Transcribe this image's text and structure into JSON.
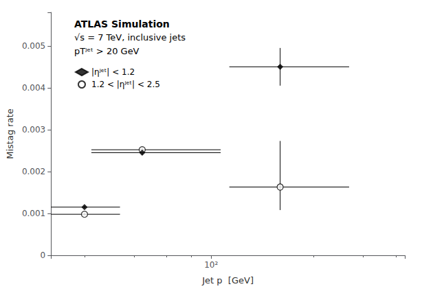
{
  "chart_data": {
    "type": "scatter",
    "xlabel": "Jet p  [GeV]",
    "ylabel": "Mistag rate",
    "log": "x",
    "xlim": [
      20,
      700
    ],
    "ylim": [
      0,
      0.0058
    ],
    "xticks": [
      {
        "value": 100,
        "label": "10²"
      }
    ],
    "yticks": [
      0,
      0.001,
      0.002,
      0.003,
      0.004,
      0.005
    ],
    "grid": false,
    "legend": "upper left",
    "annotations": [
      "ATLAS Simulation",
      "√s = 7 TeV, inclusive jets",
      "pTʲᵉᵗ > 20 GeV"
    ],
    "series": [
      {
        "name": "|ηʲᵉᵗ| < 1.2",
        "color": "#000000",
        "marker": "diamond",
        "x": [
          28,
          50,
          200
        ],
        "values": [
          0.00115,
          0.00245,
          0.0045
        ],
        "xerr_low": [
          8,
          20,
          80
        ],
        "xerr_high": [
          12,
          60,
          200
        ],
        "yerr_low": [
          3e-05,
          5e-05,
          0.00045
        ],
        "yerr_high": [
          3e-05,
          5e-05,
          0.00045
        ]
      },
      {
        "name": "1.2 < |ηʲᵉᵗ| < 2.5",
        "color": "#000000",
        "marker": "open_circle",
        "x": [
          28,
          50,
          200
        ],
        "values": [
          0.00098,
          0.00252,
          0.00163
        ],
        "xerr_low": [
          8,
          20,
          80
        ],
        "xerr_high": [
          12,
          60,
          200
        ],
        "yerr_low": [
          3e-05,
          5e-05,
          0.00055
        ],
        "yerr_high": [
          3e-05,
          5e-05,
          0.0011
        ]
      }
    ]
  }
}
